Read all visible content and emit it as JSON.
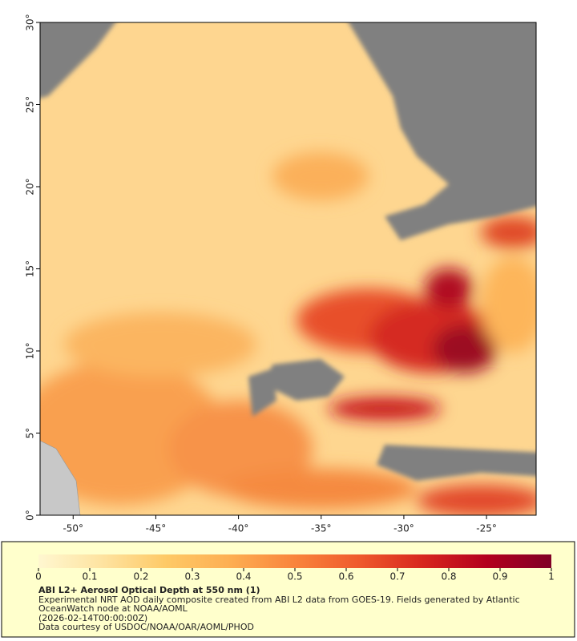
{
  "chart_data": {
    "type": "map",
    "xlim": [
      -52,
      -22
    ],
    "ylim": [
      0,
      30
    ],
    "xticks": [
      {
        "value": -50,
        "label": "-50°"
      },
      {
        "value": -45,
        "label": "-45°"
      },
      {
        "value": -40,
        "label": "-40°"
      },
      {
        "value": -35,
        "label": "-35°"
      },
      {
        "value": -30,
        "label": "-30°"
      },
      {
        "value": -25,
        "label": "-25°"
      }
    ],
    "yticks": [
      {
        "value": 0,
        "label": "0°"
      },
      {
        "value": 5,
        "label": "5°"
      },
      {
        "value": 10,
        "label": "10°"
      },
      {
        "value": 15,
        "label": "15°"
      },
      {
        "value": 20,
        "label": "20°"
      },
      {
        "value": 25,
        "label": "25°"
      },
      {
        "value": 30,
        "label": "30°"
      }
    ],
    "colorbar": {
      "lim": [
        0,
        1
      ],
      "ticks": [
        0,
        0.1,
        0.2,
        0.3,
        0.4,
        0.5,
        0.6,
        0.7,
        0.8,
        0.9,
        1
      ],
      "colors": [
        "#fff7d0",
        "#fee3a0",
        "#fec966",
        "#fdae52",
        "#f9843c",
        "#ef5a2c",
        "#d7261e",
        "#b3001e",
        "#800026"
      ]
    },
    "title": "ABI L2+ Aerosol Optical Depth at 550 nm (1)",
    "description": [
      "Experimental NRT AOD daily composite created from ABI L2 data from GOES-19. Fields generated by Atlantic",
      "OceanWatch node at NOAA/AOML",
      "(2026-02-14T00:00:00Z)",
      "Data courtesy of USDOC/NOAA/OAR/AOML/PHOD"
    ]
  }
}
